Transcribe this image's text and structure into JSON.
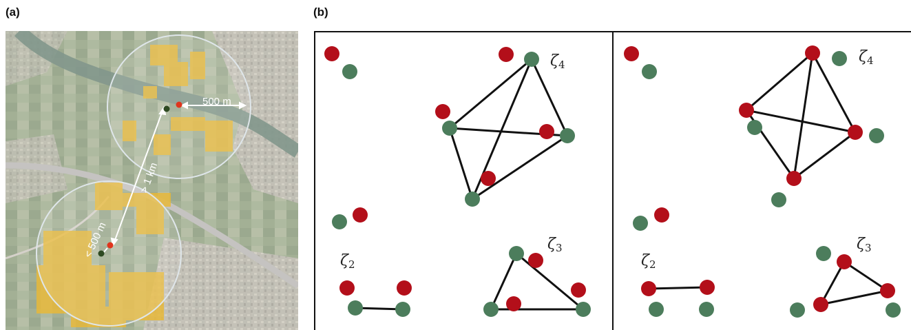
{
  "labels": {
    "panel_a": "(a)",
    "panel_b": "(b)"
  },
  "map": {
    "distance_1": "500 m",
    "distance_2": "> 1 km",
    "distance_3": "< 500 m"
  },
  "graphs": {
    "zeta_symbol": "ζ",
    "sub_4": "4",
    "sub_3": "3",
    "sub_2": "2"
  },
  "colors": {
    "red_node": "#b30f1a",
    "green_node": "#4c7d5c",
    "edge": "#111111",
    "buffer_yellow": "#e8b93a"
  }
}
